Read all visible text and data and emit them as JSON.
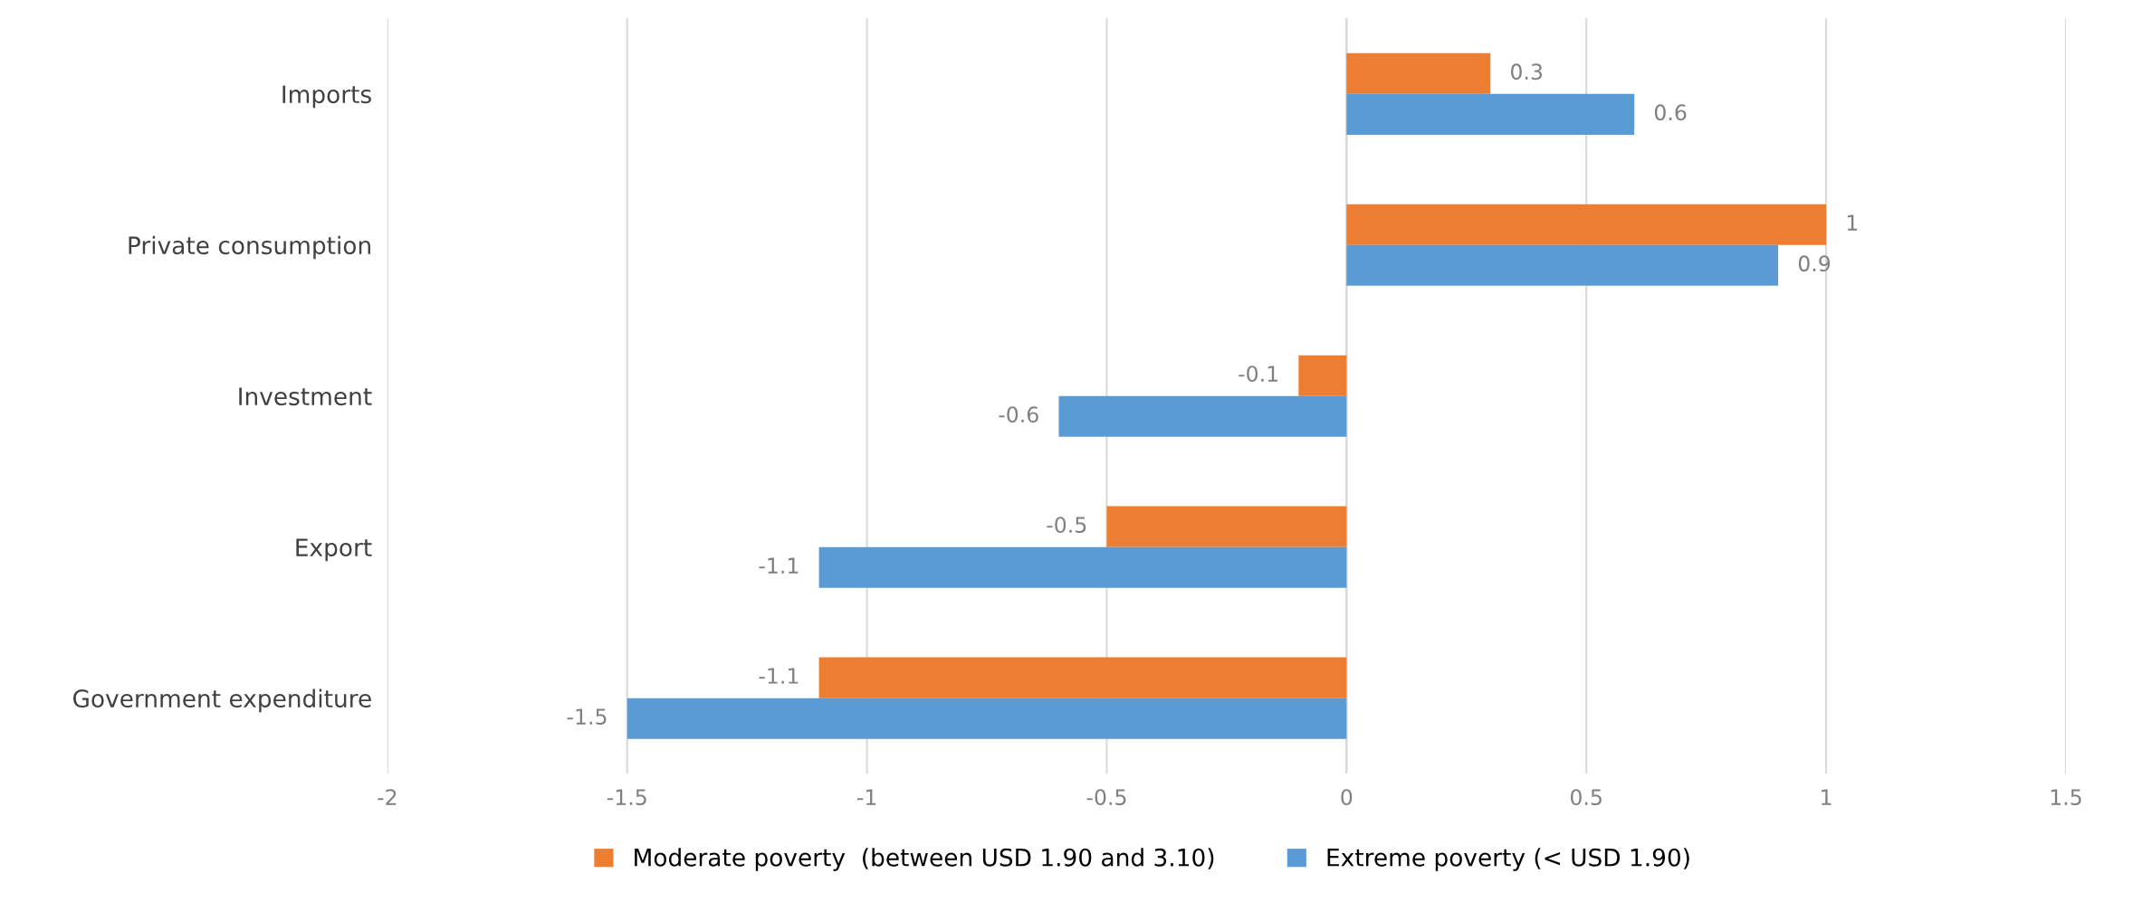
{
  "chart_data": {
    "type": "bar",
    "orientation": "horizontal",
    "categories": [
      "Imports",
      "Private consumption",
      "Investment",
      "Export",
      "Government expenditure"
    ],
    "series": [
      {
        "name": "Moderate poverty  (between USD 1.90 and 3.10)",
        "color": "#ed7d31",
        "values": [
          0.3,
          1,
          -0.1,
          -0.5,
          -1.1
        ]
      },
      {
        "name": "Extreme poverty (< USD 1.90)",
        "color": "#5b9bd5",
        "values": [
          0.6,
          0.9,
          -0.6,
          -1.1,
          -1.5
        ]
      }
    ],
    "xlim": [
      -2,
      1.5
    ],
    "xticks": [
      -2,
      -1.5,
      -1,
      -0.5,
      0,
      0.5,
      1,
      1.5
    ],
    "grid": "x",
    "legend": "bottom",
    "data_labels": true
  }
}
